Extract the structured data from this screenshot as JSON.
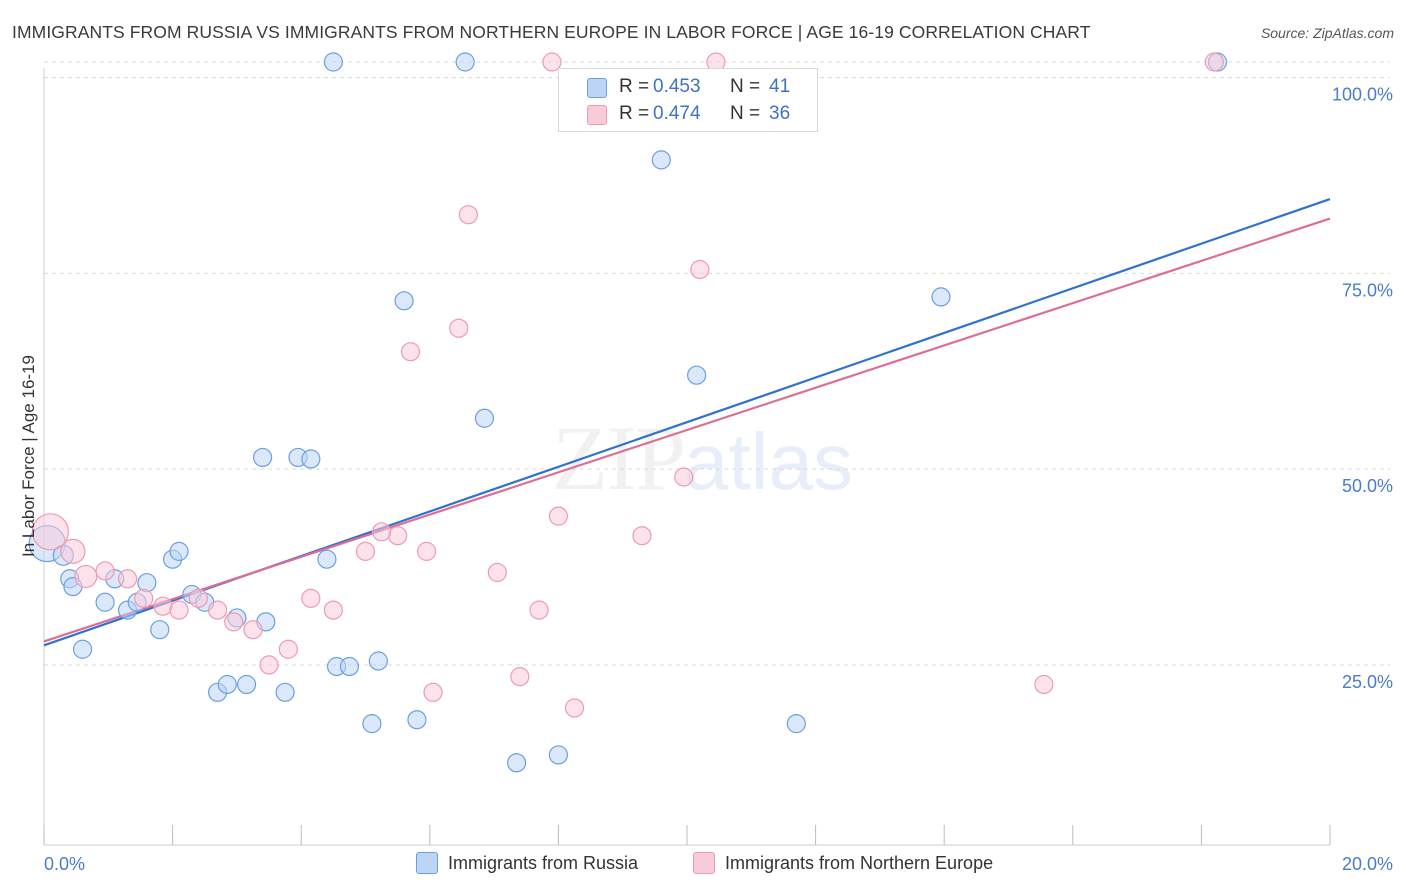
{
  "title": "IMMIGRANTS FROM RUSSIA VS IMMIGRANTS FROM NORTHERN EUROPE IN LABOR FORCE | AGE 16-19 CORRELATION CHART",
  "source": "Source: ZipAtlas.com",
  "watermark": {
    "part1": "ZIP",
    "part2": "atlas"
  },
  "legend_stats": [
    {
      "r_label": "R =",
      "r_value": "0.453",
      "n_label": "N =",
      "n_value": "41",
      "color": "#a9c6ef"
    },
    {
      "r_label": "R =",
      "r_value": "0.474",
      "n_label": "N =",
      "n_value": "36",
      "color": "#f5b8ca"
    }
  ],
  "chart_data": {
    "type": "scatter",
    "title": "IMMIGRANTS FROM RUSSIA VS IMMIGRANTS FROM NORTHERN EUROPE IN LABOR FORCE | AGE 16-19 CORRELATION CHART",
    "xlabel": "",
    "ylabel": "In Labor Force | Age 16-19",
    "xlim": [
      0,
      20
    ],
    "ylim": [
      2,
      102
    ],
    "x_tick_labels": [
      "0.0%",
      "20.0%"
    ],
    "y_ticks": [
      25,
      50,
      75,
      100
    ],
    "y_tick_labels": [
      "25.0%",
      "50.0%",
      "75.0%",
      "100.0%"
    ],
    "grid": true,
    "legend_position": "bottom",
    "series": [
      {
        "name": "Immigrants from Russia",
        "color": "#6a9fe0",
        "fill": "#bcd5f5",
        "trend": {
          "x": [
            0,
            20
          ],
          "y": [
            27.5,
            84.5
          ],
          "color": "#2f72cf"
        },
        "points": [
          [
            0.05,
            40.5,
            18
          ],
          [
            0.3,
            39.0,
            10
          ],
          [
            0.4,
            36.0,
            9
          ],
          [
            0.45,
            35.0,
            9
          ],
          [
            0.6,
            27.0,
            9
          ],
          [
            0.95,
            33.0,
            9
          ],
          [
            1.1,
            36.0,
            9
          ],
          [
            1.3,
            32.0,
            9
          ],
          [
            1.45,
            33.0,
            9
          ],
          [
            1.6,
            35.5,
            9
          ],
          [
            1.8,
            29.5,
            9
          ],
          [
            2.0,
            38.5,
            9
          ],
          [
            2.1,
            39.5,
            9
          ],
          [
            2.3,
            34.0,
            9
          ],
          [
            2.5,
            33.0,
            9
          ],
          [
            2.7,
            21.5,
            9
          ],
          [
            2.85,
            22.5,
            9
          ],
          [
            3.0,
            31.0,
            9
          ],
          [
            3.15,
            22.5,
            9
          ],
          [
            3.45,
            30.5,
            9
          ],
          [
            3.75,
            21.5,
            9
          ],
          [
            3.4,
            51.5,
            9
          ],
          [
            3.95,
            51.5,
            9
          ],
          [
            4.15,
            51.3,
            9
          ],
          [
            4.4,
            38.5,
            9
          ],
          [
            4.5,
            102.0,
            9
          ],
          [
            4.55,
            24.8,
            9
          ],
          [
            4.75,
            24.8,
            9
          ],
          [
            5.1,
            17.5,
            9
          ],
          [
            5.2,
            25.5,
            9
          ],
          [
            5.6,
            71.5,
            9
          ],
          [
            5.8,
            18.0,
            9
          ],
          [
            6.55,
            102.0,
            9
          ],
          [
            6.85,
            56.5,
            9
          ],
          [
            7.35,
            12.5,
            9
          ],
          [
            8.0,
            13.5,
            9
          ],
          [
            9.6,
            89.5,
            9
          ],
          [
            10.15,
            62.0,
            9
          ],
          [
            11.7,
            17.5,
            9
          ],
          [
            13.95,
            72.0,
            9
          ],
          [
            18.25,
            102.0,
            9
          ]
        ]
      },
      {
        "name": "Immigrants from Northern Europe",
        "color": "#ee9ab3",
        "fill": "#f9cbd8",
        "trend": {
          "x": [
            0,
            20
          ],
          "y": [
            28.0,
            82.0
          ],
          "color": "#de6d95"
        },
        "points": [
          [
            0.1,
            42.0,
            18
          ],
          [
            0.45,
            39.5,
            12
          ],
          [
            0.65,
            36.3,
            11
          ],
          [
            0.95,
            37.0,
            9
          ],
          [
            1.3,
            36.0,
            9
          ],
          [
            1.55,
            33.5,
            9
          ],
          [
            1.85,
            32.5,
            9
          ],
          [
            2.1,
            32.0,
            9
          ],
          [
            2.4,
            33.5,
            9
          ],
          [
            2.7,
            32.0,
            9
          ],
          [
            2.95,
            30.5,
            9
          ],
          [
            3.25,
            29.5,
            9
          ],
          [
            3.5,
            25.0,
            9
          ],
          [
            3.8,
            27.0,
            9
          ],
          [
            4.15,
            33.5,
            9
          ],
          [
            4.5,
            32.0,
            9
          ],
          [
            5.0,
            39.5,
            9
          ],
          [
            5.5,
            41.5,
            9
          ],
          [
            5.25,
            42.0,
            9
          ],
          [
            5.95,
            39.5,
            9
          ],
          [
            5.7,
            65.0,
            9
          ],
          [
            6.05,
            21.5,
            9
          ],
          [
            6.45,
            68.0,
            9
          ],
          [
            6.6,
            82.5,
            9
          ],
          [
            7.05,
            36.8,
            9
          ],
          [
            7.4,
            23.5,
            9
          ],
          [
            7.7,
            32.0,
            9
          ],
          [
            7.9,
            102.0,
            9
          ],
          [
            8.0,
            44.0,
            9
          ],
          [
            8.25,
            19.5,
            9
          ],
          [
            9.3,
            41.5,
            9
          ],
          [
            9.95,
            49.0,
            9
          ],
          [
            10.2,
            75.5,
            9
          ],
          [
            10.45,
            102.0,
            9
          ],
          [
            15.55,
            22.5,
            9
          ],
          [
            18.2,
            102.0,
            9
          ]
        ]
      }
    ]
  }
}
